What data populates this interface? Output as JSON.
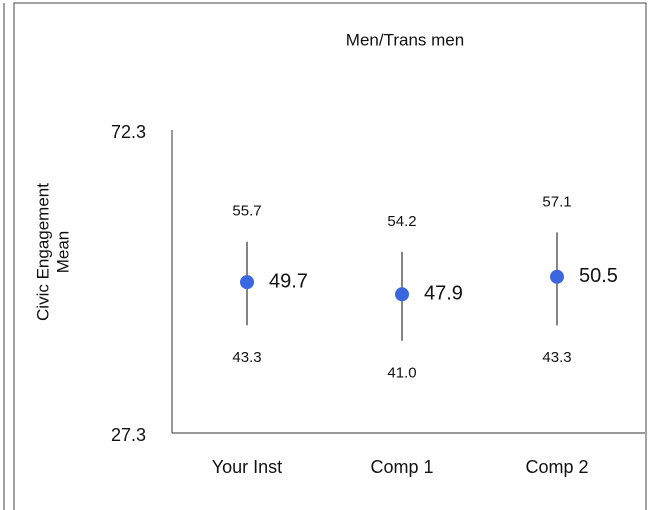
{
  "chart_data": {
    "type": "errorbar",
    "title": "Men/Trans men",
    "y_label": [
      "Civic Engagement",
      "Mean"
    ],
    "categories": [
      "Your Inst",
      "Comp 1",
      "Comp 2"
    ],
    "values": [
      49.7,
      47.9,
      50.5
    ],
    "upper": [
      55.7,
      54.2,
      57.1
    ],
    "lower": [
      43.3,
      41.0,
      43.3
    ],
    "lower_labels": [
      "43.3",
      "41.0",
      "43.3"
    ],
    "color": "#3a66e0",
    "ylim": [
      27.3,
      72.3
    ],
    "yticks": [
      27.3,
      72.3
    ]
  }
}
